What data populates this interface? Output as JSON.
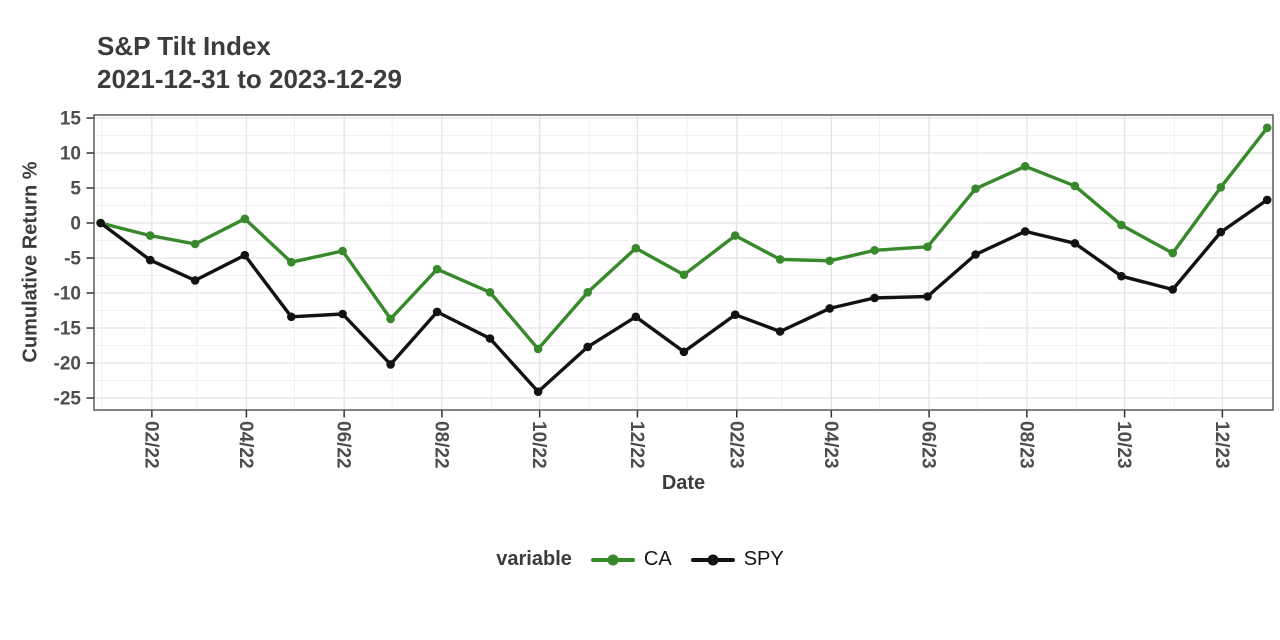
{
  "chart_data": {
    "type": "line",
    "title": "S&P Tilt Index",
    "subtitle": "2021-12-31 to 2023-12-29",
    "xlabel": "Date",
    "ylabel": "Cumulative Return %",
    "legend_title": "variable",
    "legend_position": "bottom",
    "grid": true,
    "x_dates": [
      "2021-12-31",
      "2022-01-31",
      "2022-02-28",
      "2022-03-31",
      "2022-04-29",
      "2022-05-31",
      "2022-06-30",
      "2022-07-29",
      "2022-08-31",
      "2022-09-30",
      "2022-10-31",
      "2022-11-30",
      "2022-12-30",
      "2023-01-31",
      "2023-02-28",
      "2023-03-31",
      "2023-04-28",
      "2023-05-31",
      "2023-06-30",
      "2023-07-31",
      "2023-08-31",
      "2023-09-29",
      "2023-10-31",
      "2023-11-30",
      "2023-12-29"
    ],
    "x_day_offsets": [
      0,
      31,
      59,
      90,
      119,
      151,
      181,
      210,
      243,
      273,
      304,
      334,
      364,
      396,
      424,
      455,
      483,
      516,
      546,
      577,
      608,
      637,
      669,
      699,
      728
    ],
    "series": [
      {
        "name": "CA",
        "color": "#37892b",
        "values": [
          0,
          -1.8,
          -3.0,
          0.6,
          -5.6,
          -4.0,
          -13.7,
          -6.6,
          -9.9,
          -18.0,
          -9.9,
          -3.6,
          -7.4,
          -1.8,
          -5.2,
          -5.4,
          -3.9,
          -3.4,
          4.9,
          8.1,
          5.3,
          -0.3,
          -4.3,
          5.1,
          13.6
        ]
      },
      {
        "name": "SPY",
        "color": "#121212",
        "values": [
          0,
          -5.3,
          -8.2,
          -4.6,
          -13.4,
          -13.0,
          -20.2,
          -12.7,
          -16.5,
          -24.1,
          -17.7,
          -13.4,
          -18.4,
          -13.1,
          -15.5,
          -12.2,
          -10.7,
          -10.5,
          -4.5,
          -1.2,
          -2.9,
          -7.6,
          -9.5,
          -1.3,
          3.3
        ]
      }
    ],
    "y_ticks": [
      15,
      10,
      5,
      0,
      -5,
      -10,
      -15,
      -20,
      -25
    ],
    "ylim": [
      -26.71,
      15.43
    ],
    "x_ticks": [
      {
        "label": "02/22",
        "day": 32
      },
      {
        "label": "04/22",
        "day": 91
      },
      {
        "label": "06/22",
        "day": 152
      },
      {
        "label": "08/22",
        "day": 213
      },
      {
        "label": "10/22",
        "day": 274
      },
      {
        "label": "12/22",
        "day": 335
      },
      {
        "label": "02/23",
        "day": 397
      },
      {
        "label": "04/23",
        "day": 456
      },
      {
        "label": "06/23",
        "day": 517
      },
      {
        "label": "08/23",
        "day": 578
      },
      {
        "label": "10/23",
        "day": 639
      },
      {
        "label": "12/23",
        "day": 700
      }
    ],
    "x_minor_days": [
      1,
      60,
      121,
      182,
      244,
      305,
      366,
      425,
      486,
      547,
      609,
      670
    ],
    "xlim_days": [
      -4.1,
      731.6
    ],
    "colors": {
      "grid_major": "#e4e4e4",
      "grid_minor": "#f0f0f0",
      "panel_border": "#4f4f4f",
      "tick_mark": "#333333",
      "tick_text": "#4d4d4d",
      "title_text": "#3c3c3c"
    }
  }
}
